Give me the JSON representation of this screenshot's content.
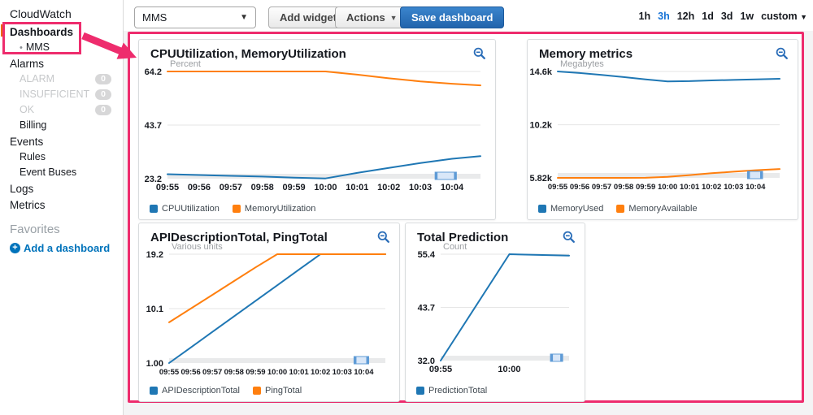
{
  "sidebar": {
    "home_label": "CloudWatch",
    "dashboards_label": "Dashboards",
    "mms_bullet": "•",
    "mms_label": "MMS",
    "alarms_label": "Alarms",
    "alarm_states": [
      {
        "label": "ALARM",
        "count": "0"
      },
      {
        "label": "INSUFFICIENT",
        "count": "0"
      },
      {
        "label": "OK",
        "count": "0"
      }
    ],
    "billing_label": "Billing",
    "events_label": "Events",
    "rules_label": "Rules",
    "event_buses_label": "Event Buses",
    "logs_label": "Logs",
    "metrics_label": "Metrics",
    "favorites_label": "Favorites",
    "plus_glyph": "+",
    "add_dashboard_label": "Add a dashboard"
  },
  "toolbar": {
    "dashboard_select_value": "MMS",
    "caret_glyph": "▼",
    "add_widget_label": "Add widget",
    "actions_label": "Actions",
    "save_label": "Save dashboard",
    "time_ranges": [
      "1h",
      "3h",
      "12h",
      "1d",
      "3d",
      "1w"
    ],
    "selected_range": "3h",
    "custom_label": "custom"
  },
  "colors": {
    "series_blue": "#1f77b4",
    "series_orange": "#ff7f0e",
    "annotation_pink": "#ee2c6d",
    "link_blue": "#0073bb",
    "save_button_blue": "#2e76c0"
  },
  "chart_data": [
    {
      "type": "line",
      "title": "CPUUtilization, MemoryUtilization",
      "unit": "Percent",
      "legend_position": "bottom-left",
      "grid": true,
      "ylim": [
        23.2,
        64.2
      ],
      "y_ticks": [
        {
          "label": "64.2",
          "value": 64.2
        },
        {
          "label": "43.7",
          "value": 43.7
        },
        {
          "label": "23.2",
          "value": 23.2
        }
      ],
      "x_max": 9.9,
      "x_ticks": [
        {
          "pos": 0,
          "label": "09:55"
        },
        {
          "pos": 1,
          "label": "09:56"
        },
        {
          "pos": 2,
          "label": "09:57"
        },
        {
          "pos": 3,
          "label": "09:58"
        },
        {
          "pos": 4,
          "label": "09:59"
        },
        {
          "pos": 5,
          "label": "10:00"
        },
        {
          "pos": 6,
          "label": "10:01"
        },
        {
          "pos": 7,
          "label": "10:02"
        },
        {
          "pos": 8,
          "label": "10:03"
        },
        {
          "pos": 9,
          "label": "10:04"
        }
      ],
      "series": [
        {
          "name": "CPUUtilization",
          "color": "#1f77b4",
          "x": [
            0,
            1,
            2,
            3,
            4,
            5,
            6,
            7,
            8,
            9,
            9.9
          ],
          "y": [
            24.9,
            24.6,
            24.3,
            24.0,
            23.6,
            23.3,
            25.4,
            27.3,
            29.2,
            30.8,
            31.8
          ]
        },
        {
          "name": "MemoryUtilization",
          "color": "#ff7f0e",
          "x": [
            0,
            1,
            2,
            3,
            4,
            5,
            6,
            7,
            8,
            9,
            9.9
          ],
          "y": [
            64.2,
            64.2,
            64.2,
            64.2,
            64.2,
            64.2,
            63.0,
            61.6,
            60.4,
            59.5,
            58.9
          ]
        }
      ]
    },
    {
      "type": "line",
      "title": "Memory metrics",
      "unit": "Megabytes",
      "legend_position": "bottom-left",
      "grid": true,
      "ylim": [
        5.82,
        14.6
      ],
      "y_ticks": [
        {
          "label": "14.6k",
          "value": 14.6
        },
        {
          "label": "10.2k",
          "value": 10.2
        },
        {
          "label": "5.82k",
          "value": 5.82
        }
      ],
      "x_max": 10.1,
      "x_ticks": [
        {
          "pos": 0,
          "label": "09:55"
        },
        {
          "pos": 1,
          "label": "09:56"
        },
        {
          "pos": 2,
          "label": "09:57"
        },
        {
          "pos": 3,
          "label": "09:58"
        },
        {
          "pos": 4,
          "label": "09:59"
        },
        {
          "pos": 5,
          "label": "10:00"
        },
        {
          "pos": 6,
          "label": "10:01"
        },
        {
          "pos": 7,
          "label": "10:02"
        },
        {
          "pos": 8,
          "label": "10:03"
        },
        {
          "pos": 9,
          "label": "10:04"
        }
      ],
      "series": [
        {
          "name": "MemoryUsed",
          "color": "#1f77b4",
          "x": [
            0,
            1,
            2,
            3,
            4,
            5,
            6,
            7,
            8,
            9,
            10.1
          ],
          "y": [
            14.6,
            14.47,
            14.32,
            14.14,
            13.95,
            13.78,
            13.8,
            13.86,
            13.9,
            13.95,
            14.0
          ]
        },
        {
          "name": "MemoryAvailable",
          "color": "#ff7f0e",
          "x": [
            0,
            1,
            2,
            3,
            4,
            5,
            6,
            7,
            8,
            9,
            10.1
          ],
          "y": [
            5.82,
            5.82,
            5.82,
            5.82,
            5.83,
            5.9,
            6.05,
            6.2,
            6.33,
            6.45,
            6.55
          ]
        }
      ]
    },
    {
      "type": "line",
      "title": "APIDescriptionTotal, PingTotal",
      "unit": "Various units",
      "legend_position": "bottom-left",
      "grid": true,
      "ylim": [
        1.0,
        19.2
      ],
      "y_ticks": [
        {
          "label": "19.2",
          "value": 19.2
        },
        {
          "label": "10.1",
          "value": 10.1
        },
        {
          "label": "1.00",
          "value": 1.0
        }
      ],
      "x_max": 10,
      "x_ticks": [
        {
          "pos": 0,
          "label": "09:55"
        },
        {
          "pos": 1,
          "label": "09:56"
        },
        {
          "pos": 2,
          "label": "09:57"
        },
        {
          "pos": 3,
          "label": "09:58"
        },
        {
          "pos": 4,
          "label": "09:59"
        },
        {
          "pos": 5,
          "label": "10:00"
        },
        {
          "pos": 6,
          "label": "10:01"
        },
        {
          "pos": 7,
          "label": "10:02"
        },
        {
          "pos": 8,
          "label": "10:03"
        },
        {
          "pos": 9,
          "label": "10:04"
        }
      ],
      "series": [
        {
          "name": "APIDescriptionTotal",
          "color": "#1f77b4",
          "x": [
            0,
            1,
            2,
            3,
            4,
            5,
            6,
            7,
            8,
            9,
            10
          ],
          "y": [
            1.0,
            3.6,
            6.2,
            8.8,
            11.4,
            14.0,
            16.6,
            19.2,
            19.2,
            19.2,
            19.2
          ]
        },
        {
          "name": "PingTotal",
          "color": "#ff7f0e",
          "x": [
            0,
            1,
            2,
            3,
            4,
            5,
            6,
            7,
            8,
            9,
            10
          ],
          "y": [
            7.8,
            10.1,
            12.4,
            14.7,
            17.0,
            19.2,
            19.2,
            19.2,
            19.2,
            19.2,
            19.2
          ]
        }
      ]
    },
    {
      "type": "line",
      "title": "Total Prediction",
      "unit": "Count",
      "legend_position": "bottom-left",
      "grid": true,
      "ylim": [
        32.0,
        55.4
      ],
      "y_ticks": [
        {
          "label": "55.4",
          "value": 55.4
        },
        {
          "label": "43.7",
          "value": 43.7
        },
        {
          "label": "32.0",
          "value": 32.0
        }
      ],
      "x_max": 9.35,
      "x_ticks": [
        {
          "pos": 0,
          "label": "09:55"
        },
        {
          "pos": 5,
          "label": "10:00"
        }
      ],
      "series": [
        {
          "name": "PredictionTotal",
          "color": "#1f77b4",
          "x": [
            0,
            5,
            9.35
          ],
          "y": [
            32.0,
            55.4,
            55.1
          ]
        }
      ]
    }
  ]
}
